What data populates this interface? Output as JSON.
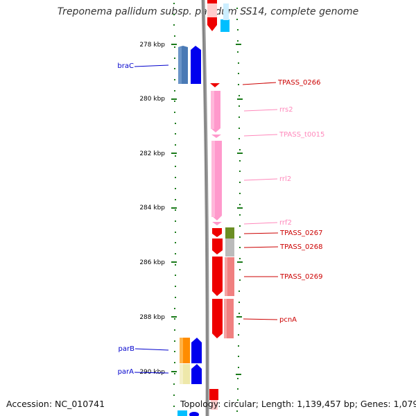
{
  "title": "Treponema pallidum subsp. pallidum SS14, complete genome",
  "accession": "Accession: NC_010741",
  "summary": "Topology: circular; Length: 1,139,457 bp; Genes: 1,079",
  "colors": {
    "tick": "#1a7a1a",
    "backbone": "#888888",
    "cds": "#ee0000",
    "rna": "#ff99cc",
    "blue": "#0000ee",
    "steel": "#4a7ab5",
    "orange": "#ff8c00",
    "khaki": "#eee8aa",
    "olive": "#6b8e23",
    "gray": "#bbbbbb",
    "salmon": "#f08080",
    "cyan": "#00bfff"
  },
  "axis": {
    "labels": [
      "278 kbp",
      "280 kbp",
      "282 kbp",
      "284 kbp",
      "286 kbp",
      "288 kbp",
      "290 kbp"
    ]
  },
  "left_labels": [
    "braC",
    "parB",
    "parA"
  ],
  "right_labels": [
    {
      "text": "TPASS_0266",
      "kind": "cds"
    },
    {
      "text": "rrs2",
      "kind": "rna"
    },
    {
      "text": "TPASS_t0015",
      "kind": "rna"
    },
    {
      "text": "rrl2",
      "kind": "rna"
    },
    {
      "text": "rrf2",
      "kind": "rna"
    },
    {
      "text": "TPASS_0267",
      "kind": "cds"
    },
    {
      "text": "TPASS_0268",
      "kind": "cds"
    },
    {
      "text": "TPASS_0269",
      "kind": "cds"
    },
    {
      "text": "pcnA",
      "kind": "cds"
    }
  ]
}
